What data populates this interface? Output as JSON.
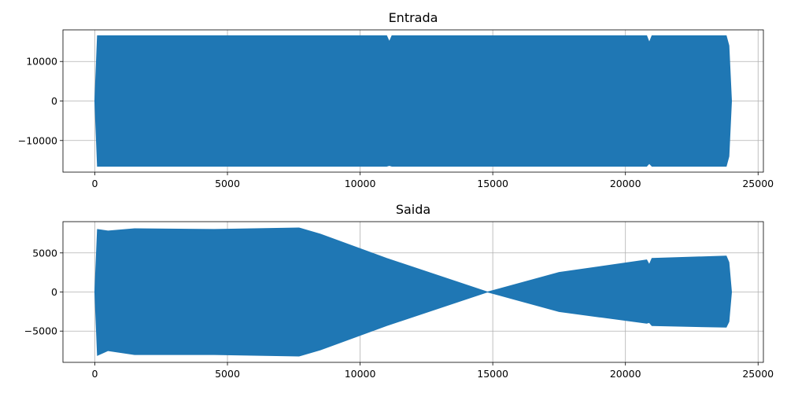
{
  "chart_data": [
    {
      "type": "line",
      "title": "Entrada",
      "xlabel": "",
      "ylabel": "",
      "xlim": [
        -1200,
        25200
      ],
      "ylim": [
        -18000,
        18000
      ],
      "xticks": [
        0,
        5000,
        10000,
        15000,
        20000,
        25000
      ],
      "xtick_labels": [
        "0",
        "5000",
        "10000",
        "15000",
        "20000",
        "25000"
      ],
      "yticks": [
        -10000,
        0,
        10000
      ],
      "ytick_labels": [
        "−10000",
        "0",
        "10000"
      ],
      "grid": true,
      "color": "#1f77b4",
      "series": [
        {
          "name": "",
          "envelope": {
            "x": [
              0,
              100,
              2000,
              6800,
              11000,
              11100,
              11200,
              14800,
              17400,
              20800,
              20900,
              21000,
              23800,
              23900,
              24000
            ],
            "upper": [
              0,
              16500,
              16500,
              16500,
              16500,
              15000,
              16500,
              16500,
              16500,
              16500,
              14800,
              16500,
              16500,
              14000,
              0
            ],
            "lower": [
              0,
              -16500,
              -16500,
              -16500,
              -16500,
              -16300,
              -16500,
              -16500,
              -16500,
              -16500,
              -15800,
              -16500,
              -16500,
              -14000,
              0
            ]
          }
        }
      ]
    },
    {
      "type": "line",
      "title": "Saida",
      "xlabel": "",
      "ylabel": "",
      "xlim": [
        -1200,
        25200
      ],
      "ylim": [
        -9000,
        9000
      ],
      "xticks": [
        0,
        5000,
        10000,
        15000,
        20000,
        25000
      ],
      "xtick_labels": [
        "0",
        "5000",
        "10000",
        "15000",
        "20000",
        "25000"
      ],
      "yticks": [
        -5000,
        0,
        5000
      ],
      "ytick_labels": [
        "−5000",
        "0",
        "5000"
      ],
      "grid": true,
      "color": "#1f77b4",
      "series": [
        {
          "name": "",
          "envelope": {
            "x": [
              0,
              100,
              500,
              1500,
              4500,
              7700,
              8500,
              11000,
              14800,
              17500,
              20800,
              20900,
              21000,
              23800,
              23900,
              24000
            ],
            "upper": [
              0,
              8000,
              7800,
              8100,
              8000,
              8200,
              7400,
              4300,
              0,
              2500,
              4100,
              3500,
              4300,
              4600,
              3800,
              0
            ],
            "lower": [
              0,
              -8100,
              -7500,
              -8000,
              -8000,
              -8200,
              -7400,
              -4300,
              0,
              -2500,
              -4000,
              -3900,
              -4300,
              -4500,
              -3800,
              0
            ]
          }
        }
      ]
    }
  ]
}
